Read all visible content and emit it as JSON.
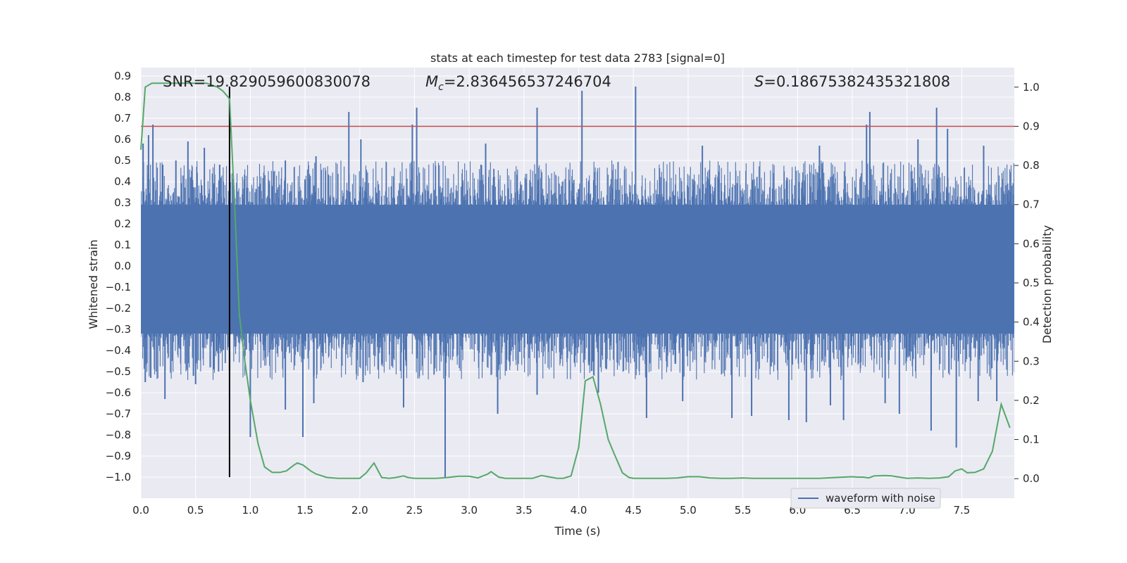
{
  "chart_data": {
    "type": "line",
    "title": "stats at each timestep for test data 2783 [signal=0]",
    "xlabel": "Time (s)",
    "ylabel": "Whitened strain",
    "y2label": "Detection probability",
    "xlim": [
      0.0,
      7.98
    ],
    "ylim": [
      -1.1,
      0.94
    ],
    "y2lim": [
      -0.05,
      1.05
    ],
    "x_ticks": [
      0.0,
      0.5,
      1.0,
      1.5,
      2.0,
      2.5,
      3.0,
      3.5,
      4.0,
      4.5,
      5.0,
      5.5,
      6.0,
      6.5,
      7.0,
      7.5
    ],
    "x_tick_labels": [
      "0.0",
      "0.5",
      "1.0",
      "1.5",
      "2.0",
      "2.5",
      "3.0",
      "3.5",
      "4.0",
      "4.5",
      "5.0",
      "5.5",
      "6.0",
      "6.5",
      "7.0",
      "7.5"
    ],
    "y_ticks": [
      0.9,
      0.8,
      0.7,
      0.6,
      0.5,
      0.4,
      0.3,
      0.2,
      0.1,
      0.0,
      -0.1,
      -0.2,
      -0.3,
      -0.4,
      -0.5,
      -0.6,
      -0.7,
      -0.8,
      -0.9,
      -1.0
    ],
    "y_tick_labels": [
      "0.9",
      "0.8",
      "0.7",
      "0.6",
      "0.5",
      "0.4",
      "0.3",
      "0.2",
      "0.1",
      "0.0",
      "−0.1",
      "−0.2",
      "−0.3",
      "−0.4",
      "−0.5",
      "−0.6",
      "−0.7",
      "−0.8",
      "−0.9",
      "−1.0"
    ],
    "y2_ticks": [
      1.0,
      0.9,
      0.8,
      0.7,
      0.6,
      0.5,
      0.4,
      0.3,
      0.2,
      0.1,
      0.0
    ],
    "y2_tick_labels": [
      "1.0",
      "0.9",
      "0.8",
      "0.7",
      "0.6",
      "0.5",
      "0.4",
      "0.3",
      "0.2",
      "0.1",
      "0.0"
    ],
    "grid": true,
    "legend": {
      "position": "bottom-right",
      "entries": [
        {
          "name": "waveform with noise",
          "color": "#4c72b0"
        }
      ]
    },
    "annotations": {
      "snr": {
        "label": "SNR=",
        "value": "19.829059600830078"
      },
      "mc": {
        "symbol": "M",
        "subscript": "c",
        "value": "=2.836456537246704"
      },
      "s": {
        "symbol": "S",
        "value": "=0.18675382435321808"
      }
    },
    "threshold": {
      "y2": 0.9,
      "color": "#c44e52"
    },
    "marker_time": 0.81,
    "marker_range": [
      -1.0,
      0.85
    ],
    "waveform": {
      "name": "waveform with noise",
      "color": "#4c72b0",
      "band": [
        -0.32,
        0.29
      ],
      "spikes": [
        [
          0.02,
          0.58
        ],
        [
          0.07,
          0.62
        ],
        [
          0.11,
          0.67
        ],
        [
          0.2,
          0.48
        ],
        [
          0.32,
          0.5
        ],
        [
          0.43,
          0.59
        ],
        [
          0.58,
          0.56
        ],
        [
          0.72,
          0.48
        ],
        [
          1.32,
          0.5
        ],
        [
          1.6,
          0.52
        ],
        [
          1.9,
          0.73
        ],
        [
          2.01,
          0.6
        ],
        [
          2.48,
          0.67
        ],
        [
          2.52,
          0.75
        ],
        [
          3.15,
          0.58
        ],
        [
          3.62,
          0.75
        ],
        [
          4.03,
          0.83
        ],
        [
          4.52,
          0.85
        ],
        [
          5.13,
          0.57
        ],
        [
          6.2,
          0.57
        ],
        [
          6.63,
          0.67
        ],
        [
          6.66,
          0.73
        ],
        [
          7.1,
          0.6
        ],
        [
          7.27,
          0.75
        ],
        [
          7.37,
          0.65
        ],
        [
          7.7,
          0.57
        ],
        [
          0.04,
          -0.55
        ],
        [
          0.09,
          -0.53
        ],
        [
          0.22,
          -0.63
        ],
        [
          0.48,
          -0.52
        ],
        [
          0.5,
          -0.56
        ],
        [
          0.71,
          -0.5
        ],
        [
          0.81,
          -0.5
        ],
        [
          1.0,
          -0.81
        ],
        [
          1.32,
          -0.68
        ],
        [
          1.48,
          -0.81
        ],
        [
          1.58,
          -0.65
        ],
        [
          2.03,
          -0.55
        ],
        [
          2.4,
          -0.67
        ],
        [
          2.78,
          -1.0
        ],
        [
          3.26,
          -0.7
        ],
        [
          3.62,
          -0.61
        ],
        [
          4.18,
          -0.6
        ],
        [
          4.62,
          -0.72
        ],
        [
          4.95,
          -0.64
        ],
        [
          5.4,
          -0.72
        ],
        [
          5.58,
          -0.71
        ],
        [
          5.92,
          -0.73
        ],
        [
          6.08,
          -0.74
        ],
        [
          6.3,
          -0.66
        ],
        [
          6.42,
          -0.73
        ],
        [
          6.8,
          -0.65
        ],
        [
          6.93,
          -0.7
        ],
        [
          7.22,
          -0.78
        ],
        [
          7.45,
          -0.86
        ],
        [
          7.65,
          -0.64
        ],
        [
          7.82,
          -0.64
        ]
      ]
    },
    "probability": {
      "color": "#55a868",
      "x": [
        0.0,
        0.04,
        0.1,
        0.2,
        0.3,
        0.4,
        0.5,
        0.6,
        0.7,
        0.75,
        0.81,
        0.86,
        0.9,
        0.95,
        1.0,
        1.07,
        1.13,
        1.2,
        1.27,
        1.33,
        1.4,
        1.43,
        1.48,
        1.55,
        1.6,
        1.7,
        1.8,
        1.9,
        2.0,
        2.06,
        2.13,
        2.2,
        2.27,
        2.33,
        2.4,
        2.44,
        2.5,
        2.6,
        2.7,
        2.8,
        2.9,
        3.0,
        3.08,
        3.17,
        3.2,
        3.27,
        3.33,
        3.4,
        3.5,
        3.58,
        3.66,
        3.72,
        3.8,
        3.86,
        3.93,
        4.0,
        4.06,
        4.13,
        4.2,
        4.27,
        4.33,
        4.4,
        4.46,
        4.5,
        4.6,
        4.7,
        4.8,
        4.9,
        5.0,
        5.05,
        5.1,
        5.2,
        5.3,
        5.4,
        5.5,
        5.6,
        5.8,
        6.0,
        6.2,
        6.35,
        6.5,
        6.55,
        6.6,
        6.65,
        6.7,
        6.8,
        6.86,
        6.93,
        7.0,
        7.1,
        7.2,
        7.3,
        7.38,
        7.44,
        7.5,
        7.55,
        7.62,
        7.7,
        7.78,
        7.86,
        7.94
      ],
      "y": [
        0.84,
        1.0,
        1.01,
        1.01,
        1.01,
        1.01,
        1.01,
        1.01,
        1.0,
        0.99,
        0.97,
        0.68,
        0.42,
        0.3,
        0.2,
        0.09,
        0.03,
        0.016,
        0.016,
        0.02,
        0.035,
        0.04,
        0.035,
        0.02,
        0.012,
        0.003,
        0.001,
        0.001,
        0.001,
        0.015,
        0.04,
        0.003,
        0.001,
        0.003,
        0.007,
        0.003,
        0.001,
        0.001,
        0.001,
        0.003,
        0.006,
        0.006,
        0.002,
        0.012,
        0.018,
        0.004,
        0.001,
        0.001,
        0.001,
        0.001,
        0.008,
        0.005,
        0.001,
        0.001,
        0.007,
        0.08,
        0.25,
        0.26,
        0.19,
        0.1,
        0.06,
        0.015,
        0.003,
        0.001,
        0.001,
        0.001,
        0.001,
        0.002,
        0.005,
        0.005,
        0.005,
        0.002,
        0.001,
        0.001,
        0.002,
        0.001,
        0.001,
        0.001,
        0.001,
        0.003,
        0.005,
        0.004,
        0.004,
        0.002,
        0.007,
        0.008,
        0.007,
        0.004,
        0.001,
        0.002,
        0.001,
        0.002,
        0.005,
        0.02,
        0.025,
        0.015,
        0.016,
        0.025,
        0.07,
        0.19,
        0.13
      ]
    }
  }
}
